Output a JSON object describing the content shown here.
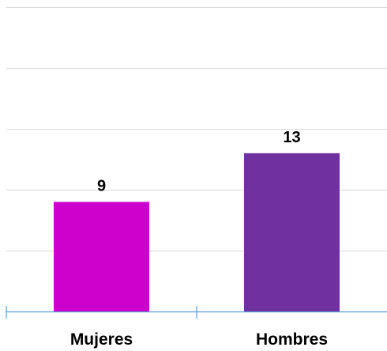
{
  "chart_data": {
    "type": "bar",
    "categories": [
      "Mujeres",
      "Hombres"
    ],
    "values": [
      9,
      13
    ],
    "ylim": [
      0,
      25
    ],
    "grid": true,
    "colors": [
      "#cc00cc",
      "#7030a0"
    ],
    "axis_color": "#5b9bd5",
    "grid_color": "#d9d9d9",
    "title": "",
    "xlabel": "",
    "ylabel": ""
  }
}
